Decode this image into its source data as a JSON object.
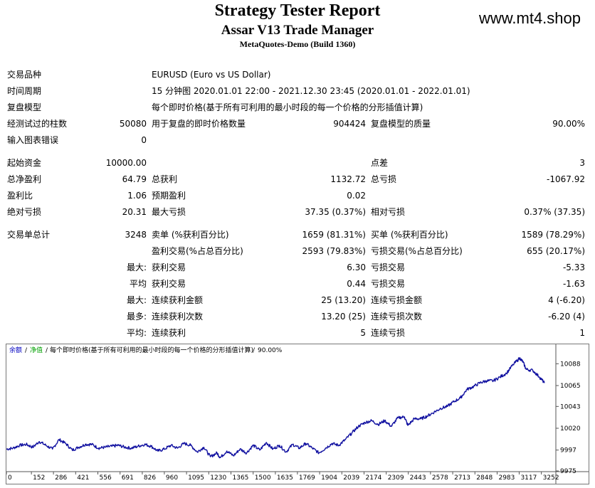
{
  "header": {
    "title": "Strategy Tester Report",
    "subtitle": "Assar V13 Trade Manager",
    "build": "MetaQuotes-Demo (Build 1360)",
    "watermark": "www.mt4.shop"
  },
  "report": {
    "symbol_label": "交易品种",
    "symbol_value": "EURUSD (Euro vs US Dollar)",
    "period_label": "时间周期",
    "period_value": "15 分钟图 2020.01.01 22:00 - 2021.12.30 23:45 (2020.01.01 - 2022.01.01)",
    "model_label": "复盘模型",
    "model_value": "每个即时价格(基于所有可利用的最小时段的每一个价格的分形插值计算)",
    "bars_label": "经测试过的柱数",
    "bars_value": "50080",
    "ticks_label": "用于复盘的即时价格数量",
    "ticks_value": "904424",
    "quality_label": "复盘模型的质量",
    "quality_value": "90.00%",
    "errors_label": "输入图表错误",
    "errors_value": "0",
    "deposit_label": "起始资金",
    "deposit_value": "10000.00",
    "spread_label": "点差",
    "spread_value": "3",
    "net_profit_label": "总净盈利",
    "net_profit_value": "64.79",
    "gross_profit_label": "总获利",
    "gross_profit_value": "1132.72",
    "gross_loss_label": "总亏损",
    "gross_loss_value": "-1067.92",
    "profit_factor_label": "盈利比",
    "profit_factor_value": "1.06",
    "expected_payoff_label": "预期盈利",
    "expected_payoff_value": "0.02",
    "abs_dd_label": "绝对亏损",
    "abs_dd_value": "20.31",
    "max_dd_label": "最大亏损",
    "max_dd_value": "37.35 (0.37%)",
    "rel_dd_label": "相对亏损",
    "rel_dd_value": "0.37% (37.35)",
    "total_trades_label": "交易单总计",
    "total_trades_value": "3248",
    "short_label": "卖单 (%获利百分比)",
    "short_value": "1659 (81.31%)",
    "long_label": "买单 (%获利百分比)",
    "long_value": "1589 (78.29%)",
    "profit_trades_label": "盈利交易(%占总百分比)",
    "profit_trades_value": "2593 (79.83%)",
    "loss_trades_label": "亏损交易(%占总百分比)",
    "loss_trades_value": "655 (20.17%)",
    "largest_label": "最大:",
    "largest_profit_label": "获利交易",
    "largest_profit_value": "6.30",
    "largest_loss_label": "亏损交易",
    "largest_loss_value": "-5.33",
    "average_label": "平均",
    "average_profit_label": "获利交易",
    "average_profit_value": "0.44",
    "average_loss_label": "亏损交易",
    "average_loss_value": "-1.63",
    "max_label": "最大:",
    "max_consec_wins_label": "连续获利金额",
    "max_consec_wins_value": "25 (13.20)",
    "max_consec_losses_label": "连续亏损金额",
    "max_consec_losses_value": "4 (-6.20)",
    "most_label": "最多:",
    "max_consec_profit_label": "连续获利次数",
    "max_consec_profit_value": "13.20 (25)",
    "max_consec_loss_label": "连续亏损次数",
    "max_consec_loss_value": "-6.20 (4)",
    "avg_label": "平均:",
    "avg_consec_wins_label": "连续获利",
    "avg_consec_wins_value": "5",
    "avg_consec_losses_label": "连续亏损",
    "avg_consec_losses_value": "1"
  },
  "chart_data": {
    "type": "line",
    "caption_balance": "余额",
    "caption_equity": "净值",
    "caption_model": "每个即时价格(基于所有可利用的最小时段的每一个价格的分形插值计算)",
    "caption_quality": "90.00%",
    "caption_sep": "/",
    "colors": {
      "balance_label": "#0000c0",
      "equity_label": "#00a000",
      "line": "#1010a0"
    },
    "xticks": [
      "0",
      "152",
      "286",
      "421",
      "556",
      "691",
      "826",
      "960",
      "1095",
      "1230",
      "1365",
      "1500",
      "1635",
      "1769",
      "1904",
      "2039",
      "2174",
      "2309",
      "2443",
      "2578",
      "2713",
      "2848",
      "2983",
      "3117",
      "3252"
    ],
    "yticks": [
      "10088",
      "10065",
      "10043",
      "10020",
      "9997",
      "9975"
    ],
    "ylim": [
      9975,
      10098
    ],
    "xlim": [
      0,
      3340
    ],
    "series": [
      {
        "x": [
          0,
          40,
          80,
          120,
          160,
          200,
          240,
          280,
          320,
          360,
          400,
          440,
          480,
          520,
          560,
          600,
          640,
          680,
          720,
          760,
          800,
          840,
          880,
          920,
          960,
          1000,
          1040,
          1080,
          1120,
          1160,
          1200,
          1240,
          1280,
          1300,
          1340,
          1380,
          1420,
          1460,
          1500,
          1540,
          1580,
          1620,
          1660,
          1700,
          1740,
          1780,
          1820,
          1860,
          1900,
          1940,
          1980,
          2020,
          2060,
          2100,
          2140,
          2180,
          2220,
          2260,
          2300,
          2340,
          2380,
          2420,
          2440,
          2480,
          2520,
          2560,
          2600,
          2640,
          2680,
          2720,
          2760,
          2800,
          2840,
          2880,
          2920,
          2960,
          3000,
          3040,
          3080,
          3120,
          3140,
          3160,
          3200,
          3240,
          3270
        ],
        "y": [
          9998,
          9999,
          10002,
          10003,
          10000,
          10006,
          10002,
          9998,
          10008,
          10004,
          9997,
          10000,
          10003,
          10003,
          9999,
          10000,
          10001,
          10002,
          10000,
          9999,
          10001,
          10003,
          10001,
          9996,
          9998,
          10002,
          9999,
          10004,
          10002,
          9995,
          10000,
          9990,
          9994,
          9989,
          9996,
          9991,
          9998,
          9994,
          10002,
          9997,
          10005,
          9998,
          10002,
          9995,
          10003,
          9999,
          10004,
          9999,
          9994,
          9999,
          10004,
          10002,
          10008,
          10015,
          10022,
          10026,
          10028,
          10024,
          10028,
          10022,
          10031,
          10032,
          10023,
          10030,
          10030,
          10033,
          10037,
          10041,
          10043,
          10048,
          10052,
          10061,
          10064,
          10068,
          10070,
          10070,
          10074,
          10078,
          10087,
          10094,
          10090,
          10082,
          10081,
          10074,
          10068
        ]
      }
    ]
  }
}
